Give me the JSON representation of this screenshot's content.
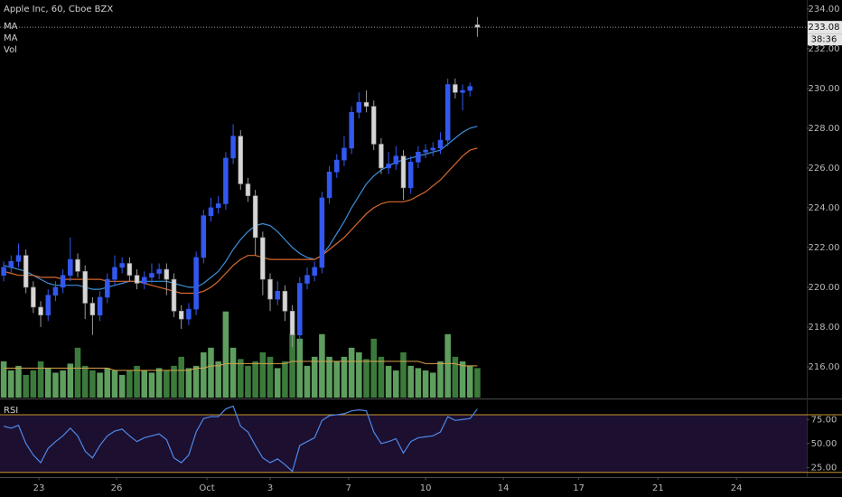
{
  "chart_data": {
    "type": "candlestick",
    "title": "Apple Inc, 60, Cboe BZX",
    "x": [
      0,
      1,
      2,
      3,
      4,
      5,
      6,
      7,
      8,
      9,
      10,
      11,
      12,
      13,
      14,
      15,
      16,
      17,
      18,
      19,
      20,
      21,
      22,
      23,
      24,
      25,
      26,
      27,
      28,
      29,
      30,
      31,
      32,
      33,
      34,
      35,
      36,
      37,
      38,
      39,
      40,
      41,
      42,
      43,
      44,
      45,
      46,
      47,
      48,
      49,
      50,
      51,
      52,
      53,
      54,
      55,
      56,
      57,
      58,
      59,
      60,
      61,
      62,
      63,
      64
    ],
    "xlim": [
      -0.5,
      108.5
    ],
    "xticks": [
      {
        "value": 4.75,
        "label": "23"
      },
      {
        "value": 15.24,
        "label": "26"
      },
      {
        "value": 27.45,
        "label": "Oct"
      },
      {
        "value": 36.0,
        "label": "3"
      },
      {
        "value": 46.6,
        "label": "7"
      },
      {
        "value": 57.0,
        "label": "10"
      },
      {
        "value": 67.5,
        "label": "14"
      },
      {
        "value": 77.7,
        "label": "17"
      },
      {
        "value": 88.4,
        "label": "21"
      },
      {
        "value": 99.0,
        "label": "24"
      }
    ],
    "open": [
      220.6,
      221.0,
      221.3,
      221.6,
      220.0,
      219.0,
      218.6,
      219.6,
      220.0,
      220.6,
      221.4,
      220.8,
      219.2,
      218.6,
      219.5,
      220.4,
      221.0,
      221.2,
      220.6,
      220.2,
      220.5,
      220.7,
      220.9,
      220.4,
      218.8,
      218.4,
      218.9,
      221.5,
      223.6,
      224.0,
      224.2,
      226.5,
      227.6,
      225.2,
      224.6,
      222.5,
      220.4,
      219.4,
      219.8,
      218.8,
      217.6,
      220.2,
      220.6,
      221.0,
      224.5,
      225.8,
      226.4,
      227.0,
      228.8,
      229.3,
      229.1,
      227.2,
      226.0,
      226.2,
      226.6,
      225.0,
      226.3,
      226.8,
      226.9,
      227.0,
      227.4,
      230.2,
      229.8,
      229.9,
      233.2
    ],
    "high": [
      221.3,
      221.6,
      222.2,
      221.9,
      220.3,
      219.3,
      219.9,
      220.3,
      220.9,
      222.5,
      221.7,
      221.1,
      219.5,
      219.8,
      220.7,
      221.6,
      221.5,
      221.5,
      220.9,
      220.8,
      221.2,
      221.2,
      221.2,
      220.7,
      219.1,
      219.2,
      221.8,
      223.9,
      224.5,
      224.6,
      226.8,
      228.2,
      227.9,
      225.5,
      224.9,
      222.8,
      220.7,
      220.3,
      220.1,
      219.1,
      220.5,
      221.0,
      221.3,
      224.8,
      226.1,
      226.7,
      227.6,
      229.1,
      229.8,
      229.9,
      229.4,
      227.5,
      226.8,
      227.1,
      226.9,
      226.6,
      227.1,
      227.2,
      227.3,
      227.8,
      230.5,
      230.5,
      230.2,
      230.3,
      233.6
    ],
    "low": [
      220.3,
      220.7,
      221.0,
      219.7,
      218.7,
      218.0,
      218.3,
      219.3,
      219.7,
      220.3,
      220.5,
      218.4,
      217.6,
      218.3,
      219.2,
      220.1,
      220.7,
      220.3,
      219.9,
      219.9,
      220.2,
      220.4,
      219.6,
      218.5,
      217.9,
      218.1,
      218.6,
      221.2,
      223.3,
      223.7,
      223.9,
      226.2,
      224.9,
      224.3,
      221.6,
      219.6,
      218.8,
      219.1,
      218.3,
      217.0,
      217.3,
      219.9,
      220.3,
      220.7,
      224.2,
      225.5,
      226.1,
      226.7,
      228.5,
      228.8,
      226.9,
      225.7,
      225.7,
      225.9,
      224.4,
      224.7,
      226.0,
      226.5,
      226.6,
      226.7,
      227.1,
      229.5,
      228.9,
      229.6,
      232.6
    ],
    "close": [
      221.0,
      221.3,
      221.6,
      220.0,
      219.0,
      218.6,
      219.6,
      220.0,
      220.6,
      221.4,
      220.8,
      219.2,
      218.6,
      219.5,
      220.4,
      221.0,
      221.2,
      220.6,
      220.2,
      220.5,
      220.7,
      220.9,
      220.4,
      218.8,
      218.4,
      218.9,
      221.5,
      223.6,
      224.0,
      224.2,
      226.5,
      227.6,
      225.2,
      224.6,
      222.5,
      220.4,
      219.4,
      219.8,
      218.8,
      217.6,
      220.2,
      220.6,
      221.0,
      224.5,
      225.8,
      226.4,
      227.0,
      228.8,
      229.3,
      229.1,
      227.2,
      226.0,
      226.2,
      226.6,
      225.0,
      226.3,
      226.8,
      226.9,
      227.0,
      227.4,
      230.2,
      229.8,
      229.9,
      230.1,
      233.08
    ],
    "up_color": "#3358f0",
    "down_color": "#d6d6d6",
    "ylim": [
      214.45,
      234.45
    ],
    "yticks": [
      {
        "value": 216,
        "label": "216.00"
      },
      {
        "value": 218,
        "label": "218.00"
      },
      {
        "value": 220,
        "label": "220.00"
      },
      {
        "value": 222,
        "label": "222.00"
      },
      {
        "value": 224,
        "label": "224.00"
      },
      {
        "value": 226,
        "label": "226.00"
      },
      {
        "value": 228,
        "label": "228.00"
      },
      {
        "value": 230,
        "label": "230.00"
      },
      {
        "value": 232,
        "label": "232.00"
      },
      {
        "value": 234,
        "label": "234.00"
      }
    ],
    "last_price": 233.08,
    "countdown": "38:36",
    "ma": [
      {
        "name": "MA",
        "color": "#3d8fd8",
        "values": [
          221.1,
          221.0,
          220.9,
          220.8,
          220.6,
          220.4,
          220.2,
          220.1,
          220.1,
          220.1,
          220.1,
          220.0,
          219.9,
          219.9,
          220.0,
          220.1,
          220.2,
          220.3,
          220.3,
          220.3,
          220.3,
          220.3,
          220.3,
          220.2,
          220.1,
          220.0,
          220.0,
          220.2,
          220.5,
          220.8,
          221.3,
          221.9,
          222.4,
          222.8,
          223.1,
          223.2,
          223.1,
          222.8,
          222.4,
          222.0,
          221.7,
          221.5,
          221.4,
          221.6,
          222.1,
          222.7,
          223.3,
          224.0,
          224.6,
          225.2,
          225.6,
          225.9,
          226.1,
          226.3,
          226.4,
          226.5,
          226.6,
          226.7,
          226.8,
          226.9,
          227.2,
          227.5,
          227.8,
          228.0,
          228.1
        ]
      },
      {
        "name": "MA",
        "color": "#d9692c",
        "values": [
          220.8,
          220.7,
          220.6,
          220.6,
          220.6,
          220.5,
          220.5,
          220.5,
          220.4,
          220.4,
          220.4,
          220.4,
          220.4,
          220.4,
          220.3,
          220.3,
          220.3,
          220.3,
          220.3,
          220.2,
          220.1,
          220.0,
          219.9,
          219.8,
          219.7,
          219.7,
          219.7,
          219.8,
          220.0,
          220.3,
          220.7,
          221.1,
          221.4,
          221.6,
          221.6,
          221.5,
          221.4,
          221.4,
          221.4,
          221.4,
          221.4,
          221.4,
          221.4,
          221.6,
          221.9,
          222.2,
          222.5,
          222.9,
          223.3,
          223.7,
          224.0,
          224.2,
          224.3,
          224.3,
          224.3,
          224.4,
          224.6,
          224.8,
          225.1,
          225.4,
          225.8,
          226.2,
          226.6,
          226.9,
          227.0
        ]
      }
    ],
    "volume": {
      "name": "Vol",
      "ylim": [
        0,
        100
      ],
      "values": [
        16,
        12,
        14,
        10,
        12,
        16,
        13,
        11,
        12,
        15,
        22,
        14,
        12,
        11,
        13,
        12,
        10,
        12,
        14,
        12,
        11,
        13,
        12,
        14,
        18,
        13,
        14,
        20,
        22,
        16,
        38,
        22,
        17,
        14,
        16,
        20,
        18,
        13,
        16,
        28,
        26,
        14,
        18,
        28,
        18,
        16,
        18,
        22,
        20,
        17,
        26,
        18,
        14,
        12,
        20,
        14,
        13,
        12,
        11,
        16,
        28,
        18,
        16,
        14,
        13
      ],
      "ma_values": [
        13,
        13,
        13,
        13,
        13,
        13,
        13,
        13,
        13,
        13,
        13,
        13,
        13,
        13,
        13,
        12,
        12,
        12,
        12,
        12,
        12,
        12,
        12,
        12,
        12,
        12,
        13,
        13,
        14,
        14,
        15,
        15,
        15,
        15,
        15,
        15,
        15,
        15,
        15,
        16,
        16,
        16,
        16,
        16,
        16,
        16,
        16,
        16,
        16,
        16,
        16,
        16,
        16,
        16,
        16,
        16,
        16,
        15,
        15,
        15,
        15,
        15,
        14,
        14,
        14
      ],
      "up_color": "#5e9e5e",
      "down_color": "#3c7a3c",
      "ma_color": "#d8a24a"
    },
    "rsi": {
      "name": "RSI",
      "ylim": [
        15,
        95
      ],
      "yticks": [
        {
          "value": 25,
          "label": "25.00"
        },
        {
          "value": 50,
          "label": "50.00"
        },
        {
          "value": 75,
          "label": "75.00"
        }
      ],
      "bands": [
        80,
        20
      ],
      "color": "#4f88e8",
      "band_color": "#c8932e",
      "fill": "#1c0f30",
      "values": [
        68,
        66,
        69,
        50,
        38,
        30,
        45,
        52,
        58,
        66,
        58,
        42,
        35,
        48,
        58,
        63,
        65,
        58,
        52,
        56,
        58,
        60,
        54,
        35,
        30,
        38,
        62,
        76,
        78,
        78,
        86,
        89,
        68,
        62,
        48,
        35,
        30,
        34,
        28,
        21,
        48,
        52,
        56,
        74,
        79,
        80,
        81,
        84,
        85,
        84,
        62,
        50,
        52,
        55,
        40,
        52,
        56,
        57,
        58,
        62,
        78,
        74,
        75,
        76,
        86
      ]
    }
  }
}
